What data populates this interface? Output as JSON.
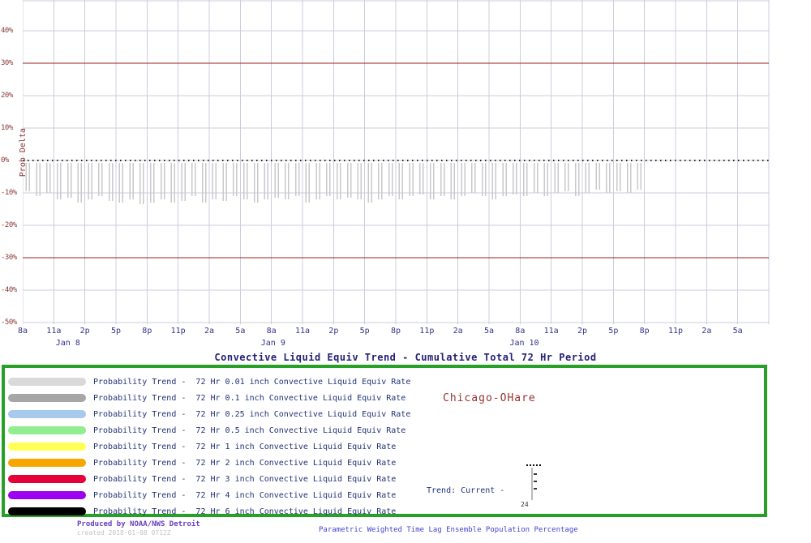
{
  "station": "Chicago-OHare",
  "colors": {
    "grid": "#ccccdd",
    "reference_line": "#992222",
    "zero_line": "#222222",
    "bar": "#c9c9c9",
    "y_tick_text": "#8b3a3a",
    "x_tick_text": "#333388",
    "title_text": "#222277",
    "legend_border": "#28a028",
    "legend_text": "#223377",
    "station_text": "#993333",
    "footer_left": "#6a3fc0",
    "footer_created": "#c4c4c4",
    "footer_caption": "#4343cf"
  },
  "chart_data": {
    "type": "bar",
    "title": "Convective Liquid Equiv Trend - Cumulative Total 72 Hr Period",
    "ylabel": "Prob Delta",
    "ylim": [
      -50.5,
      49.5
    ],
    "y_ticks": [
      40,
      30,
      20,
      10,
      0,
      -10,
      -20,
      -30,
      -40,
      -50
    ],
    "y_tick_labels": [
      "40%",
      "30%",
      "20%",
      "10%",
      "0%",
      "-10%",
      "-20%",
      "-30%",
      "-40%",
      "-50%"
    ],
    "x_total_hours": 72,
    "x_tick_interval_hours": 3,
    "x_tick_labels": [
      "8a",
      "11a",
      "2p",
      "5p",
      "8p",
      "11p",
      "2a",
      "5a",
      "8a",
      "11a",
      "2p",
      "5p",
      "8p",
      "11p",
      "2a",
      "5a",
      "8a",
      "11a",
      "2p",
      "5p",
      "8p",
      "11p",
      "2a",
      "5a"
    ],
    "day_labels": [
      {
        "label": "Jan 8",
        "hour": 4.6
      },
      {
        "label": "Jan 9",
        "hour": 24.4
      },
      {
        "label": "Jan 10",
        "hour": 48.4
      }
    ],
    "grid": true,
    "reference_lines": [
      30,
      -30
    ],
    "zero_reference": 0,
    "series": [
      {
        "name": "Prob Delta - 72 Hr 0.01 inch Convective Liquid Equiv Rate",
        "color": "#c9c9c9",
        "start_hour": 0.5,
        "step_hours": 1,
        "values": [
          -9.5,
          -11,
          -10,
          -12,
          -11.5,
          -13,
          -12,
          -11,
          -12.5,
          -13,
          -12,
          -13.5,
          -13,
          -12,
          -13,
          -12.5,
          -11,
          -13,
          -12,
          -12.5,
          -11,
          -12,
          -13,
          -12,
          -11.5,
          -12,
          -11,
          -13,
          -12,
          -11,
          -12,
          -11.5,
          -12,
          -13,
          -12,
          -11,
          -12,
          -11,
          -10.5,
          -12,
          -11,
          -12,
          -11,
          -10,
          -11,
          -12,
          -11,
          -10.5,
          -11,
          -10,
          -11,
          -10,
          -9.5,
          -11,
          -10,
          -9,
          -10,
          -9.5,
          -10,
          -9
        ]
      }
    ]
  },
  "legend": {
    "items": [
      {
        "color": "#d9d9d9",
        "label": "Probability Trend -  72 Hr 0.01 inch Convective Liquid Equiv Rate"
      },
      {
        "color": "#a6a6a6",
        "label": "Probability Trend -  72 Hr 0.1 inch Convective Liquid Equiv Rate"
      },
      {
        "color": "#a8c8ec",
        "label": "Probability Trend -  72 Hr 0.25 inch Convective Liquid Equiv Rate"
      },
      {
        "color": "#90ee90",
        "label": "Probability Trend -  72 Hr 0.5 inch Convective Liquid Equiv Rate"
      },
      {
        "color": "#ffff55",
        "label": "Probability Trend -  72 Hr 1 inch Convective Liquid Equiv Rate"
      },
      {
        "color": "#f7a600",
        "label": "Probability Trend -  72 Hr 2 inch Convective Liquid Equiv Rate"
      },
      {
        "color": "#e60039",
        "label": "Probability Trend -  72 Hr 3 inch Convective Liquid Equiv Rate"
      },
      {
        "color": "#9b00f0",
        "label": "Probability Trend -  72 Hr 4 inch Convective Liquid Equiv Rate"
      },
      {
        "color": "#000000",
        "label": "Probability Trend -  72 Hr 6 inch Convective Liquid Equiv Rate"
      }
    ]
  },
  "trend_panel": {
    "label": "Trend: Current -",
    "mini_axis_label": "24"
  },
  "footer": {
    "produced_by": "Produced by NOAA/NWS Detroit",
    "created": "created 2018-01-08 0712Z",
    "caption": "Parametric Weighted Time Lag Ensemble Population Percentage"
  }
}
